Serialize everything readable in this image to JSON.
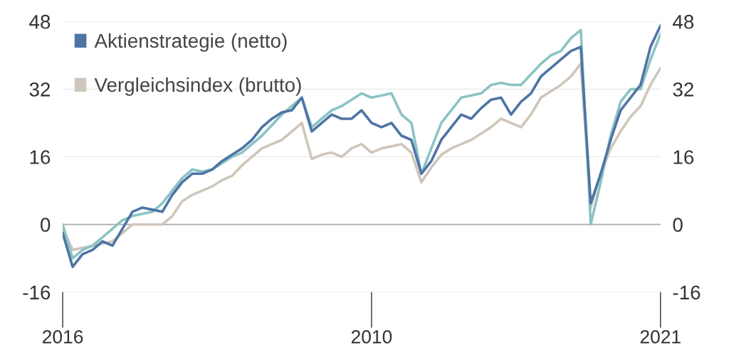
{
  "chart_data": {
    "type": "line",
    "categories": [
      "2016",
      null,
      null,
      null,
      null,
      null,
      null,
      null,
      null,
      null,
      null,
      null,
      null,
      null,
      null,
      null,
      null,
      null,
      null,
      null,
      null,
      null,
      null,
      null,
      null,
      null,
      null,
      null,
      null,
      null,
      null,
      "2010",
      null,
      null,
      null,
      null,
      null,
      null,
      null,
      null,
      null,
      null,
      null,
      null,
      null,
      null,
      null,
      null,
      null,
      null,
      null,
      null,
      null,
      null,
      null,
      null,
      null,
      null,
      null,
      null,
      "2021"
    ],
    "series": [
      {
        "name": "Aktienstrategie (netto)",
        "color": "#4f74a5",
        "values": [
          -2,
          -10,
          -7,
          -6,
          -4,
          -5,
          -1,
          3,
          4,
          3.5,
          3,
          7,
          10,
          12,
          12,
          13,
          15,
          16.5,
          18,
          20,
          23,
          25,
          26.5,
          27,
          30,
          22,
          24,
          26,
          25,
          25,
          27,
          24,
          23,
          24,
          21,
          20,
          12,
          15,
          20,
          23,
          26,
          25,
          27.5,
          29.5,
          30,
          26,
          29,
          31,
          35,
          37,
          39,
          41,
          42,
          5,
          12,
          20,
          27,
          30,
          33,
          42,
          47
        ]
      },
      {
        "color": "#8cc3c4",
        "values": [
          0,
          -8,
          -6,
          -5,
          -3,
          -1,
          1,
          2,
          2.5,
          3,
          5,
          8,
          11,
          13,
          12.5,
          13,
          14.5,
          16,
          17,
          19,
          21,
          23.5,
          26,
          28,
          30,
          23,
          25,
          27,
          28,
          29.5,
          31,
          30,
          30.5,
          31,
          26,
          24,
          12,
          18,
          24,
          27,
          30,
          30.5,
          31,
          33,
          33.5,
          33,
          33,
          35.5,
          38,
          40,
          41,
          44,
          46,
          0,
          10,
          21,
          29,
          32,
          32,
          39,
          45
        ]
      },
      {
        "name": "Vergleichsindex (brutto)",
        "color": "#cfc6bb",
        "values": [
          -1,
          -6,
          -5.5,
          -5,
          -4.5,
          -4,
          -2,
          0,
          0,
          0,
          0,
          2,
          5.5,
          7,
          8,
          9,
          10.5,
          11.5,
          14,
          16,
          18,
          19,
          20,
          22,
          24,
          15.5,
          16.5,
          17,
          16,
          18,
          19,
          17,
          18,
          18.5,
          19,
          17,
          10,
          13.5,
          16.5,
          18,
          19,
          20,
          21.5,
          23,
          25,
          24,
          23,
          26,
          30,
          31.5,
          33,
          35,
          38,
          4,
          12,
          18,
          22,
          25.5,
          28,
          33,
          37
        ]
      }
    ],
    "ylim": [
      -16,
      48
    ],
    "yticks": [
      -16,
      0,
      16,
      32,
      48
    ],
    "y2lim": [
      -16,
      48
    ],
    "y2ticks": [
      -16,
      0,
      16,
      32,
      48
    ],
    "grid": "y",
    "legend": "top left",
    "marker": "none",
    "line_style": "solid"
  }
}
